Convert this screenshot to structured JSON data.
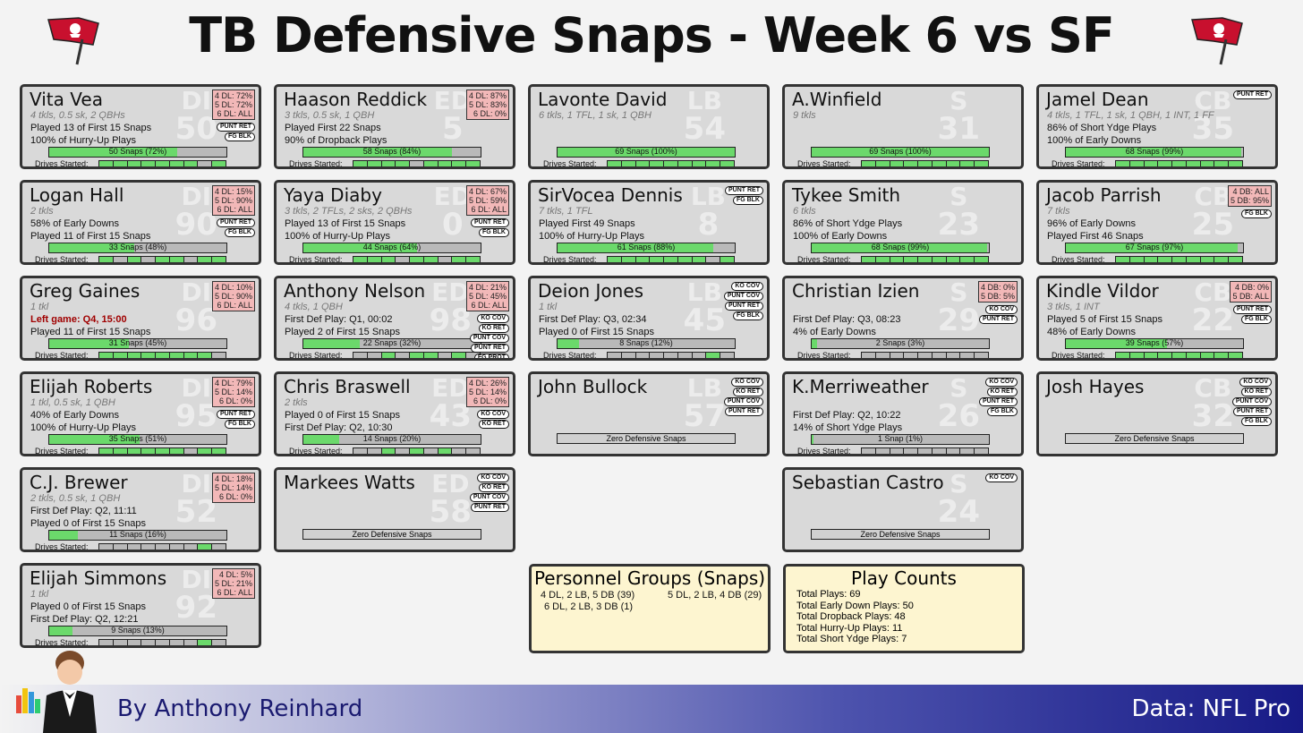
{
  "title": "TB Defensive Snaps - Week 6 vs SF",
  "footer": {
    "byline": "By Anthony Reinhard",
    "data_source": "Data: NFL Pro"
  },
  "colors": {
    "on": "#6bd96b",
    "off": "#b9b9b9",
    "dl_box": "#f2b8b8",
    "panel": "#fdf5d0"
  },
  "players": [
    {
      "name": "Vita Vea",
      "pos": "DI",
      "num": "50",
      "col": 0,
      "row": 0,
      "stats": "4 tkls, 0.5 sk, 2 QBHs",
      "lines": [
        "Played 13 of First 15 Snaps",
        "100% of Hurry-Up Plays"
      ],
      "snaps": "50 Snaps (72%)",
      "pct": 0.72,
      "dl": [
        "4 DL: 72%",
        "5 DL: 72%",
        "6 DL: ALL"
      ],
      "badges": [
        "PUNT RET",
        "FG BLK"
      ],
      "drives": [
        1,
        1,
        1,
        1,
        1,
        1,
        1,
        0,
        1
      ]
    },
    {
      "name": "Haason Reddick",
      "pos": "ED",
      "num": "5",
      "col": 1,
      "row": 0,
      "stats": "3 tkls, 0.5 sk, 1 QBH",
      "lines": [
        "Played First 22 Snaps",
        "90% of Dropback Plays"
      ],
      "snaps": "58 Snaps (84%)",
      "pct": 0.84,
      "dl": [
        "4 DL: 87%",
        "5 DL: 83%",
        "6 DL: 0%"
      ],
      "badges": [],
      "drives": [
        1,
        1,
        1,
        1,
        0,
        1,
        1,
        1,
        1
      ]
    },
    {
      "name": "Lavonte David",
      "pos": "LB",
      "num": "54",
      "col": 2,
      "row": 0,
      "stats": "6 tkls, 1 TFL, 1 sk, 1 QBH",
      "lines": [],
      "snaps": "69 Snaps (100%)",
      "pct": 1.0,
      "dl": [],
      "badges": [],
      "drives": [
        1,
        1,
        1,
        1,
        1,
        1,
        1,
        1,
        1
      ]
    },
    {
      "name": "A.Winfield",
      "pos": "S",
      "num": "31",
      "col": 3,
      "row": 0,
      "stats": "9 tkls",
      "lines": [],
      "snaps": "69 Snaps (100%)",
      "pct": 1.0,
      "dl": [],
      "badges": [],
      "drives": [
        1,
        1,
        1,
        1,
        1,
        1,
        1,
        1,
        1
      ]
    },
    {
      "name": "Jamel Dean",
      "pos": "CB",
      "num": "35",
      "col": 4,
      "row": 0,
      "stats": "4 tkls, 1 TFL, 1 sk, 1 QBH, 1 INT, 1 FF",
      "lines": [
        "86% of Short Ydge Plays",
        "100% of Early Downs"
      ],
      "snaps": "68 Snaps (99%)",
      "pct": 0.99,
      "dl": [],
      "badges": [
        "PUNT RET"
      ],
      "drives": [
        1,
        1,
        1,
        1,
        1,
        1,
        1,
        1,
        1
      ]
    },
    {
      "name": "Logan Hall",
      "pos": "DI",
      "num": "90",
      "col": 0,
      "row": 1,
      "stats": "2 tkls",
      "lines": [
        "58% of Early Downs",
        "Played 11 of First 15 Snaps"
      ],
      "snaps": "33 Snaps (48%)",
      "pct": 0.48,
      "dl": [
        "4 DL: 15%",
        "5 DL: 90%",
        "6 DL: ALL"
      ],
      "badges": [
        "PUNT RET",
        "FG BLK"
      ],
      "drives": [
        1,
        0,
        1,
        0,
        1,
        1,
        0,
        1,
        1
      ]
    },
    {
      "name": "Yaya Diaby",
      "pos": "ED",
      "num": "0",
      "col": 1,
      "row": 1,
      "stats": "3 tkls, 2 TFLs, 2 sks, 2 QBHs",
      "lines": [
        "Played 13 of First 15 Snaps",
        "100% of Hurry-Up Plays"
      ],
      "snaps": "44 Snaps (64%)",
      "pct": 0.64,
      "dl": [
        "4 DL: 67%",
        "5 DL: 59%",
        "6 DL: ALL"
      ],
      "badges": [
        "PUNT RET",
        "FG BLK"
      ],
      "drives": [
        1,
        1,
        1,
        0,
        1,
        1,
        0,
        1,
        1
      ]
    },
    {
      "name": "SirVocea Dennis",
      "pos": "LB",
      "num": "8",
      "col": 2,
      "row": 1,
      "stats": "7 tkls, 1 TFL",
      "lines": [
        "Played First 49 Snaps",
        "100% of Hurry-Up Plays"
      ],
      "snaps": "61 Snaps (88%)",
      "pct": 0.88,
      "dl": [],
      "badges": [
        "PUNT RET",
        "FG BLK"
      ],
      "drives": [
        1,
        1,
        1,
        1,
        1,
        1,
        1,
        0,
        1
      ]
    },
    {
      "name": "Tykee Smith",
      "pos": "S",
      "num": "23",
      "col": 3,
      "row": 1,
      "stats": "6 tkls",
      "lines": [
        "86% of Short Ydge Plays",
        "100% of Early Downs"
      ],
      "snaps": "68 Snaps (99%)",
      "pct": 0.99,
      "dl": [],
      "badges": [],
      "drives": [
        1,
        1,
        1,
        1,
        1,
        1,
        1,
        1,
        1
      ]
    },
    {
      "name": "Jacob Parrish",
      "pos": "CB",
      "num": "25",
      "col": 4,
      "row": 1,
      "stats": "7 tkls",
      "lines": [
        "96% of Early Downs",
        "Played First 46 Snaps"
      ],
      "snaps": "67 Snaps (97%)",
      "pct": 0.97,
      "dl": [
        "4 DB: ALL",
        "5 DB: 95%"
      ],
      "badges": [
        "FG BLK"
      ],
      "drives": [
        1,
        1,
        1,
        1,
        1,
        1,
        1,
        1,
        1
      ]
    },
    {
      "name": "Greg Gaines",
      "pos": "DI",
      "num": "96",
      "col": 0,
      "row": 2,
      "stats": "1 tkl",
      "red": "Left game: Q4, 15:00",
      "lines": [
        "Played 11 of First 15 Snaps"
      ],
      "snaps": "31 Snaps (45%)",
      "pct": 0.45,
      "dl": [
        "4 DL: 10%",
        "5 DL: 90%",
        "6 DL: ALL"
      ],
      "badges": [],
      "drives": [
        1,
        1,
        1,
        1,
        1,
        1,
        1,
        1,
        0
      ]
    },
    {
      "name": "Anthony Nelson",
      "pos": "ED",
      "num": "98",
      "col": 1,
      "row": 2,
      "stats": "4 tkls, 1 QBH",
      "lines": [
        "First Def Play: Q1, 00:02",
        "Played 2 of First 15 Snaps"
      ],
      "snaps": "22 Snaps (32%)",
      "pct": 0.32,
      "dl": [
        "4 DL: 21%",
        "5 DL: 45%",
        "6 DL: ALL"
      ],
      "badges": [
        "KO COV",
        "KO RET",
        "PUNT COV",
        "PUNT RET",
        "FG PROT",
        "FG BLK"
      ],
      "drives": [
        0,
        0,
        1,
        0,
        1,
        1,
        0,
        1,
        0
      ]
    },
    {
      "name": "Deion Jones",
      "pos": "LB",
      "num": "45",
      "col": 2,
      "row": 2,
      "stats": "1 tkl",
      "lines": [
        "First Def Play: Q3, 02:34",
        "Played 0 of First 15 Snaps"
      ],
      "snaps": "8 Snaps (12%)",
      "pct": 0.12,
      "dl": [],
      "badges": [
        "KO COV",
        "PUNT COV",
        "PUNT RET",
        "FG BLK"
      ],
      "drives": [
        0,
        0,
        0,
        0,
        0,
        0,
        0,
        1,
        0
      ]
    },
    {
      "name": "Christian Izien",
      "pos": "S",
      "num": "29",
      "col": 3,
      "row": 2,
      "stats": "",
      "lines": [
        "First Def Play: Q3, 08:23",
        "4% of Early Downs"
      ],
      "snaps": "2 Snaps (3%)",
      "pct": 0.03,
      "dl": [
        "4 DB: 0%",
        "5 DB: 5%"
      ],
      "badges": [
        "KO COV",
        "PUNT RET"
      ],
      "drives": [
        0,
        0,
        0,
        0,
        0,
        0,
        0,
        0,
        0
      ]
    },
    {
      "name": "Kindle Vildor",
      "pos": "CB",
      "num": "22",
      "col": 4,
      "row": 2,
      "stats": "3 tkls, 1 INT",
      "lines": [
        "Played 5 of First 15 Snaps",
        "48% of Early Downs"
      ],
      "snaps": "39 Snaps (57%)",
      "pct": 0.57,
      "dl": [
        "4 DB: 0%",
        "5 DB: ALL"
      ],
      "badges": [
        "PUNT RET",
        "FG BLK"
      ],
      "drives": [
        1,
        1,
        1,
        1,
        1,
        1,
        1,
        1,
        1
      ]
    },
    {
      "name": "Elijah Roberts",
      "pos": "DI",
      "num": "95",
      "col": 0,
      "row": 3,
      "stats": "1 tkl, 0.5 sk, 1 QBH",
      "lines": [
        "40% of Early Downs",
        "100% of Hurry-Up Plays"
      ],
      "snaps": "35 Snaps (51%)",
      "pct": 0.51,
      "dl": [
        "4 DL: 79%",
        "5 DL: 14%",
        "6 DL: 0%"
      ],
      "badges": [
        "PUNT RET",
        "FG BLK"
      ],
      "drives": [
        1,
        1,
        1,
        1,
        1,
        1,
        0,
        1,
        1
      ]
    },
    {
      "name": "Chris Braswell",
      "pos": "ED",
      "num": "43",
      "col": 1,
      "row": 3,
      "stats": "2 tkls",
      "lines": [
        "Played 0 of First 15 Snaps",
        "First Def Play: Q2, 10:30"
      ],
      "snaps": "14 Snaps (20%)",
      "pct": 0.2,
      "dl": [
        "4 DL: 26%",
        "5 DL: 14%",
        "6 DL: 0%"
      ],
      "badges": [
        "KO COV",
        "KO RET"
      ],
      "drives": [
        0,
        0,
        1,
        0,
        1,
        0,
        1,
        0,
        0
      ]
    },
    {
      "name": "John Bullock",
      "pos": "LB",
      "num": "57",
      "col": 2,
      "row": 3,
      "stats": "",
      "lines": [],
      "zero": "Zero Defensive Snaps",
      "dl": [],
      "badges": [
        "KO COV",
        "KO RET",
        "PUNT COV",
        "PUNT RET"
      ]
    },
    {
      "name": "K.Merriweather",
      "pos": "S",
      "num": "26",
      "col": 3,
      "row": 3,
      "stats": "",
      "lines": [
        "First Def Play: Q2, 10:22",
        "14% of Short Ydge Plays"
      ],
      "snaps": "1 Snap (1%)",
      "pct": 0.01,
      "dl": [],
      "badges": [
        "KO COV",
        "KO RET",
        "PUNT RET",
        "FG BLK"
      ],
      "drives": [
        0,
        0,
        0,
        0,
        0,
        0,
        0,
        0,
        0
      ]
    },
    {
      "name": "Josh Hayes",
      "pos": "CB",
      "num": "32",
      "col": 4,
      "row": 3,
      "stats": "",
      "lines": [],
      "zero": "Zero Defensive Snaps",
      "dl": [],
      "badges": [
        "KO COV",
        "KO RET",
        "PUNT COV",
        "PUNT RET",
        "FG BLK"
      ]
    },
    {
      "name": "C.J. Brewer",
      "pos": "DI",
      "num": "52",
      "col": 0,
      "row": 4,
      "stats": "2 tkls, 0.5 sk, 1 QBH",
      "lines": [
        "First Def Play: Q2, 11:11",
        "Played 0 of First 15 Snaps"
      ],
      "snaps": "11 Snaps (16%)",
      "pct": 0.16,
      "dl": [
        "4 DL: 18%",
        "5 DL: 14%",
        "6 DL: 0%"
      ],
      "badges": [],
      "drives": [
        0,
        0,
        0,
        0,
        0,
        0,
        0,
        1,
        0
      ]
    },
    {
      "name": "Markees Watts",
      "pos": "ED",
      "num": "58",
      "col": 1,
      "row": 4,
      "stats": "",
      "lines": [],
      "zero": "Zero Defensive Snaps",
      "dl": [],
      "badges": [
        "KO COV",
        "KO RET",
        "PUNT COV",
        "PUNT RET"
      ]
    },
    {
      "name": "Sebastian Castro",
      "pos": "S",
      "num": "24",
      "col": 3,
      "row": 4,
      "stats": "",
      "lines": [],
      "zero": "Zero Defensive Snaps",
      "dl": [],
      "badges": [
        "KO COV"
      ]
    },
    {
      "name": "Elijah Simmons",
      "pos": "DI",
      "num": "92",
      "col": 0,
      "row": 5,
      "stats": "1 tkl",
      "lines": [
        "Played 0 of First 15 Snaps",
        "First Def Play: Q2, 12:21"
      ],
      "snaps": "9 Snaps (13%)",
      "pct": 0.13,
      "dl": [
        "4 DL: 5%",
        "5 DL: 21%",
        "6 DL: ALL"
      ],
      "badges": [],
      "drives": [
        0,
        0,
        0,
        0,
        0,
        0,
        0,
        1,
        0
      ]
    }
  ],
  "drives_label": "Drives Started:",
  "personnel": {
    "title": "Personnel Groups (Snaps)",
    "items": [
      "4 DL, 2 LB, 5 DB (39)",
      "5 DL, 2 LB, 4 DB (29)",
      "6 DL, 2 LB, 3 DB (1)"
    ]
  },
  "play_counts": {
    "title": "Play Counts",
    "items": [
      "Total Plays: 69",
      "Total Early Down Plays: 50",
      "Total Dropback Plays: 48",
      "Total Hurry-Up Plays: 11",
      "Total Short Ydge Plays: 7"
    ]
  }
}
